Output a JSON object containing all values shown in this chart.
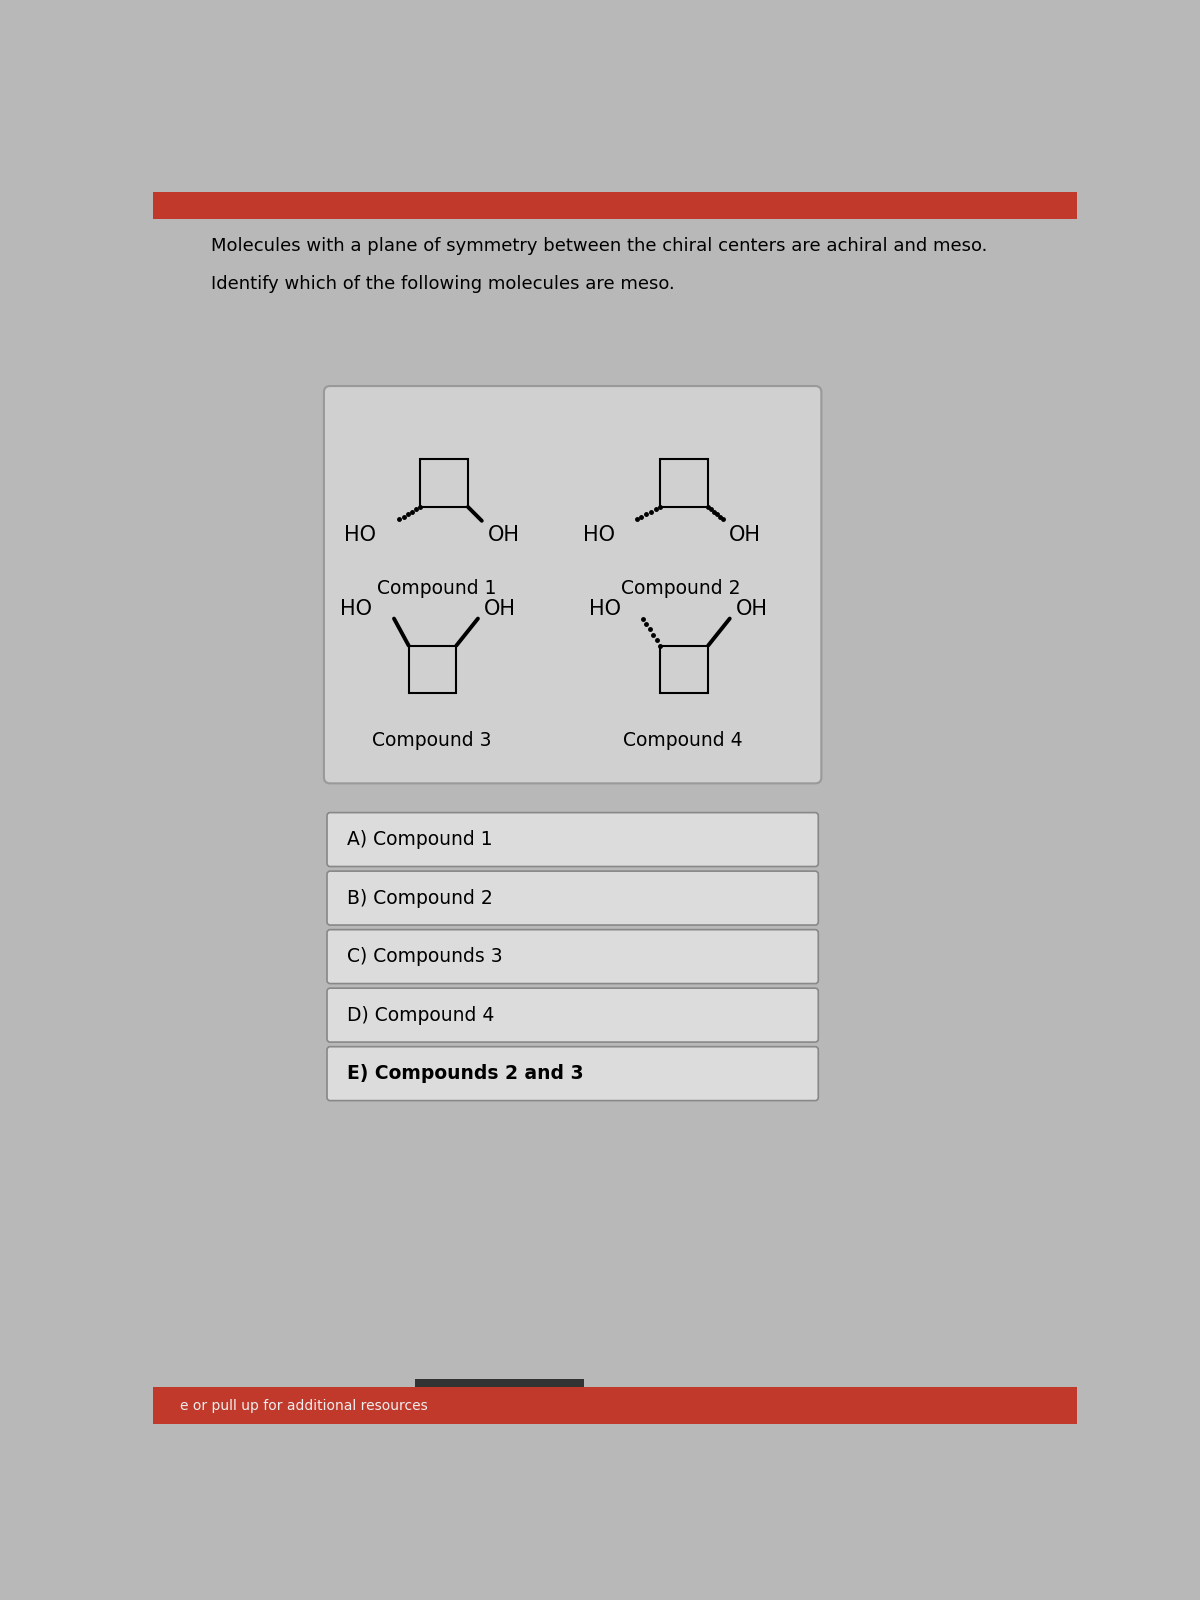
{
  "title_line1": "Molecules with a plane of symmetry between the chiral centers are achiral and meso.",
  "title_line2": "Identify which of the following molecules are meso.",
  "background_color": "#b8b8b8",
  "answer_bg": "#dcdcdc",
  "answer_border": "#888888",
  "choices": [
    "A) Compound 1",
    "B) Compound 2",
    "C) Compounds 3",
    "D) Compound 4",
    "E) Compounds 2 and 3"
  ],
  "choice_bold": [
    false,
    false,
    false,
    false,
    true
  ],
  "footer_text": "e or pull up for additional resources",
  "footer_color": "#c0392b",
  "top_bar_color": "#c0392b"
}
